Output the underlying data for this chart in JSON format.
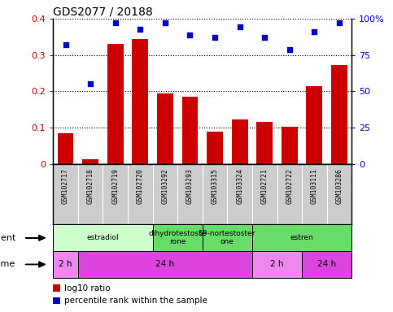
{
  "title": "GDS2077 / 20188",
  "samples": [
    "GSM102717",
    "GSM102718",
    "GSM102719",
    "GSM102720",
    "GSM103292",
    "GSM103293",
    "GSM103315",
    "GSM103324",
    "GSM102721",
    "GSM102722",
    "GSM103111",
    "GSM103286"
  ],
  "log10_ratio": [
    0.085,
    0.012,
    0.33,
    0.345,
    0.195,
    0.185,
    0.088,
    0.122,
    0.115,
    0.102,
    0.215,
    0.272
  ],
  "percentile_rank": [
    0.82,
    0.55,
    0.975,
    0.93,
    0.975,
    0.89,
    0.87,
    0.945,
    0.87,
    0.79,
    0.91,
    0.975
  ],
  "bar_color": "#cc0000",
  "dot_color": "#0000cc",
  "ylim_left": [
    0,
    0.4
  ],
  "ylim_right": [
    0,
    1.0
  ],
  "yticks_left": [
    0,
    0.1,
    0.2,
    0.3,
    0.4
  ],
  "yticks_right": [
    0,
    0.25,
    0.5,
    0.75,
    1.0
  ],
  "ytick_labels_left": [
    "0",
    "0.1",
    "0.2",
    "0.3",
    "0.4"
  ],
  "ytick_labels_right": [
    "0",
    "25",
    "50",
    "75",
    "100%"
  ],
  "agent_rows": [
    {
      "label": "estradiol",
      "start": 0,
      "end": 4,
      "color": "#ccffcc"
    },
    {
      "label": "dihydrotestoste\nrone",
      "start": 4,
      "end": 6,
      "color": "#66dd66"
    },
    {
      "label": "19-nortestoster\none",
      "start": 6,
      "end": 8,
      "color": "#66dd66"
    },
    {
      "label": "estren",
      "start": 8,
      "end": 12,
      "color": "#66dd66"
    }
  ],
  "time_rows": [
    {
      "label": "2 h",
      "start": 0,
      "end": 1,
      "color": "#ee88ee"
    },
    {
      "label": "24 h",
      "start": 1,
      "end": 8,
      "color": "#dd44dd"
    },
    {
      "label": "2 h",
      "start": 8,
      "end": 10,
      "color": "#ee88ee"
    },
    {
      "label": "24 h",
      "start": 10,
      "end": 12,
      "color": "#dd44dd"
    }
  ],
  "legend_bar_label": "log10 ratio",
  "legend_dot_label": "percentile rank within the sample",
  "bg_color": "#ffffff",
  "label_agent": "agent",
  "label_time": "time",
  "tick_bg_color": "#cccccc",
  "tick_line_color": "#888888"
}
